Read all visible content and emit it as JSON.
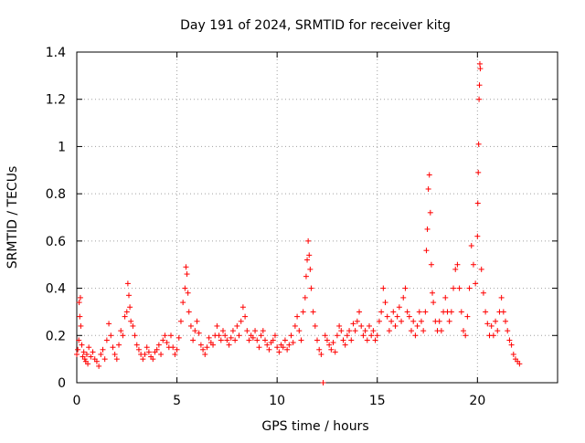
{
  "chart_data": {
    "type": "scatter",
    "title": "Day 191 of 2024, SRMTID for receiver kitg",
    "xlabel": "GPS time / hours",
    "ylabel": "SRMTID / TECUs",
    "xlim": [
      0,
      24
    ],
    "ylim": [
      0,
      1.4
    ],
    "xticks": [
      0,
      5,
      10,
      15,
      20
    ],
    "yticks": [
      0,
      0.2,
      0.4,
      0.6,
      0.8,
      1,
      1.2,
      1.4
    ],
    "xtick_labels": [
      "0",
      "5",
      "10",
      "15",
      "20"
    ],
    "ytick_labels": [
      "0",
      "0.2",
      "0.4",
      "0.6",
      "0.8",
      "1",
      "1.2",
      "1.4"
    ],
    "grid": true,
    "marker": "plus",
    "color": "#ff0000",
    "series": [
      {
        "name": "SRMTID",
        "points": [
          [
            0.0,
            0.12
          ],
          [
            0.05,
            0.14
          ],
          [
            0.1,
            0.18
          ],
          [
            0.12,
            0.34
          ],
          [
            0.15,
            0.28
          ],
          [
            0.18,
            0.36
          ],
          [
            0.2,
            0.24
          ],
          [
            0.25,
            0.16
          ],
          [
            0.3,
            0.11
          ],
          [
            0.35,
            0.13
          ],
          [
            0.4,
            0.1
          ],
          [
            0.45,
            0.09
          ],
          [
            0.5,
            0.12
          ],
          [
            0.55,
            0.08
          ],
          [
            0.6,
            0.15
          ],
          [
            0.7,
            0.11
          ],
          [
            0.8,
            0.13
          ],
          [
            0.9,
            0.1
          ],
          [
            1.0,
            0.09
          ],
          [
            1.1,
            0.07
          ],
          [
            1.2,
            0.12
          ],
          [
            1.3,
            0.14
          ],
          [
            1.4,
            0.1
          ],
          [
            1.5,
            0.18
          ],
          [
            1.6,
            0.25
          ],
          [
            1.7,
            0.2
          ],
          [
            1.8,
            0.15
          ],
          [
            1.9,
            0.12
          ],
          [
            2.0,
            0.1
          ],
          [
            2.1,
            0.16
          ],
          [
            2.2,
            0.22
          ],
          [
            2.3,
            0.2
          ],
          [
            2.4,
            0.28
          ],
          [
            2.5,
            0.3
          ],
          [
            2.55,
            0.42
          ],
          [
            2.6,
            0.37
          ],
          [
            2.65,
            0.32
          ],
          [
            2.7,
            0.26
          ],
          [
            2.8,
            0.24
          ],
          [
            2.9,
            0.2
          ],
          [
            3.0,
            0.16
          ],
          [
            3.1,
            0.14
          ],
          [
            3.2,
            0.12
          ],
          [
            3.3,
            0.1
          ],
          [
            3.4,
            0.12
          ],
          [
            3.5,
            0.15
          ],
          [
            3.6,
            0.13
          ],
          [
            3.7,
            0.11
          ],
          [
            3.8,
            0.1
          ],
          [
            3.9,
            0.13
          ],
          [
            4.0,
            0.14
          ],
          [
            4.1,
            0.16
          ],
          [
            4.2,
            0.12
          ],
          [
            4.3,
            0.18
          ],
          [
            4.4,
            0.2
          ],
          [
            4.5,
            0.17
          ],
          [
            4.6,
            0.15
          ],
          [
            4.7,
            0.2
          ],
          [
            4.8,
            0.15
          ],
          [
            4.9,
            0.12
          ],
          [
            5.0,
            0.14
          ],
          [
            5.1,
            0.19
          ],
          [
            5.2,
            0.26
          ],
          [
            5.3,
            0.34
          ],
          [
            5.4,
            0.4
          ],
          [
            5.45,
            0.49
          ],
          [
            5.5,
            0.46
          ],
          [
            5.55,
            0.38
          ],
          [
            5.6,
            0.3
          ],
          [
            5.7,
            0.24
          ],
          [
            5.8,
            0.18
          ],
          [
            5.9,
            0.22
          ],
          [
            6.0,
            0.26
          ],
          [
            6.1,
            0.21
          ],
          [
            6.2,
            0.16
          ],
          [
            6.3,
            0.14
          ],
          [
            6.4,
            0.12
          ],
          [
            6.5,
            0.15
          ],
          [
            6.6,
            0.19
          ],
          [
            6.7,
            0.17
          ],
          [
            6.8,
            0.16
          ],
          [
            6.9,
            0.2
          ],
          [
            7.0,
            0.24
          ],
          [
            7.1,
            0.2
          ],
          [
            7.2,
            0.18
          ],
          [
            7.3,
            0.22
          ],
          [
            7.4,
            0.2
          ],
          [
            7.5,
            0.18
          ],
          [
            7.6,
            0.16
          ],
          [
            7.7,
            0.19
          ],
          [
            7.8,
            0.22
          ],
          [
            7.9,
            0.18
          ],
          [
            8.0,
            0.24
          ],
          [
            8.1,
            0.2
          ],
          [
            8.2,
            0.26
          ],
          [
            8.3,
            0.32
          ],
          [
            8.4,
            0.28
          ],
          [
            8.5,
            0.22
          ],
          [
            8.6,
            0.18
          ],
          [
            8.7,
            0.2
          ],
          [
            8.8,
            0.19
          ],
          [
            8.9,
            0.22
          ],
          [
            9.0,
            0.18
          ],
          [
            9.1,
            0.15
          ],
          [
            9.2,
            0.2
          ],
          [
            9.3,
            0.22
          ],
          [
            9.4,
            0.18
          ],
          [
            9.5,
            0.16
          ],
          [
            9.6,
            0.14
          ],
          [
            9.7,
            0.17
          ],
          [
            9.8,
            0.18
          ],
          [
            9.9,
            0.2
          ],
          [
            10.0,
            0.15
          ],
          [
            10.1,
            0.13
          ],
          [
            10.2,
            0.16
          ],
          [
            10.3,
            0.15
          ],
          [
            10.4,
            0.18
          ],
          [
            10.5,
            0.14
          ],
          [
            10.6,
            0.16
          ],
          [
            10.7,
            0.2
          ],
          [
            10.8,
            0.17
          ],
          [
            10.9,
            0.24
          ],
          [
            11.0,
            0.28
          ],
          [
            11.1,
            0.22
          ],
          [
            11.2,
            0.18
          ],
          [
            11.3,
            0.3
          ],
          [
            11.4,
            0.36
          ],
          [
            11.45,
            0.45
          ],
          [
            11.5,
            0.52
          ],
          [
            11.55,
            0.6
          ],
          [
            11.6,
            0.54
          ],
          [
            11.65,
            0.48
          ],
          [
            11.7,
            0.4
          ],
          [
            11.8,
            0.3
          ],
          [
            11.9,
            0.24
          ],
          [
            12.0,
            0.18
          ],
          [
            12.1,
            0.14
          ],
          [
            12.2,
            0.12
          ],
          [
            12.3,
            0.0
          ],
          [
            12.4,
            0.2
          ],
          [
            12.5,
            0.18
          ],
          [
            12.6,
            0.16
          ],
          [
            12.7,
            0.14
          ],
          [
            12.8,
            0.17
          ],
          [
            12.9,
            0.13
          ],
          [
            13.0,
            0.2
          ],
          [
            13.1,
            0.24
          ],
          [
            13.2,
            0.22
          ],
          [
            13.3,
            0.18
          ],
          [
            13.4,
            0.16
          ],
          [
            13.5,
            0.2
          ],
          [
            13.6,
            0.22
          ],
          [
            13.7,
            0.18
          ],
          [
            13.8,
            0.25
          ],
          [
            13.9,
            0.22
          ],
          [
            14.0,
            0.26
          ],
          [
            14.1,
            0.3
          ],
          [
            14.2,
            0.24
          ],
          [
            14.3,
            0.2
          ],
          [
            14.4,
            0.22
          ],
          [
            14.5,
            0.18
          ],
          [
            14.6,
            0.24
          ],
          [
            14.7,
            0.2
          ],
          [
            14.8,
            0.22
          ],
          [
            14.9,
            0.18
          ],
          [
            15.0,
            0.2
          ],
          [
            15.1,
            0.26
          ],
          [
            15.2,
            0.3
          ],
          [
            15.3,
            0.4
          ],
          [
            15.4,
            0.34
          ],
          [
            15.5,
            0.28
          ],
          [
            15.6,
            0.22
          ],
          [
            15.7,
            0.26
          ],
          [
            15.8,
            0.3
          ],
          [
            15.9,
            0.24
          ],
          [
            16.0,
            0.28
          ],
          [
            16.1,
            0.32
          ],
          [
            16.2,
            0.26
          ],
          [
            16.3,
            0.36
          ],
          [
            16.4,
            0.4
          ],
          [
            16.5,
            0.3
          ],
          [
            16.6,
            0.28
          ],
          [
            16.7,
            0.22
          ],
          [
            16.8,
            0.26
          ],
          [
            16.9,
            0.2
          ],
          [
            17.0,
            0.24
          ],
          [
            17.1,
            0.3
          ],
          [
            17.2,
            0.26
          ],
          [
            17.3,
            0.22
          ],
          [
            17.4,
            0.3
          ],
          [
            17.45,
            0.56
          ],
          [
            17.5,
            0.65
          ],
          [
            17.55,
            0.82
          ],
          [
            17.6,
            0.88
          ],
          [
            17.65,
            0.72
          ],
          [
            17.7,
            0.5
          ],
          [
            17.75,
            0.38
          ],
          [
            17.8,
            0.34
          ],
          [
            17.9,
            0.26
          ],
          [
            18.0,
            0.22
          ],
          [
            18.1,
            0.26
          ],
          [
            18.2,
            0.22
          ],
          [
            18.3,
            0.3
          ],
          [
            18.4,
            0.36
          ],
          [
            18.5,
            0.3
          ],
          [
            18.6,
            0.26
          ],
          [
            18.7,
            0.3
          ],
          [
            18.8,
            0.4
          ],
          [
            18.9,
            0.48
          ],
          [
            19.0,
            0.5
          ],
          [
            19.1,
            0.4
          ],
          [
            19.2,
            0.3
          ],
          [
            19.3,
            0.22
          ],
          [
            19.4,
            0.2
          ],
          [
            19.5,
            0.28
          ],
          [
            19.6,
            0.4
          ],
          [
            19.7,
            0.58
          ],
          [
            19.8,
            0.5
          ],
          [
            19.9,
            0.42
          ],
          [
            20.0,
            0.62
          ],
          [
            20.02,
            0.76
          ],
          [
            20.04,
            0.89
          ],
          [
            20.06,
            1.01
          ],
          [
            20.08,
            1.2
          ],
          [
            20.1,
            1.26
          ],
          [
            20.12,
            1.35
          ],
          [
            20.14,
            1.33
          ],
          [
            20.2,
            0.48
          ],
          [
            20.3,
            0.38
          ],
          [
            20.4,
            0.3
          ],
          [
            20.5,
            0.25
          ],
          [
            20.6,
            0.2
          ],
          [
            20.7,
            0.24
          ],
          [
            20.8,
            0.2
          ],
          [
            20.9,
            0.26
          ],
          [
            21.0,
            0.22
          ],
          [
            21.1,
            0.3
          ],
          [
            21.2,
            0.36
          ],
          [
            21.3,
            0.3
          ],
          [
            21.4,
            0.26
          ],
          [
            21.5,
            0.22
          ],
          [
            21.6,
            0.18
          ],
          [
            21.7,
            0.16
          ],
          [
            21.8,
            0.12
          ],
          [
            21.9,
            0.1
          ],
          [
            22.0,
            0.09
          ],
          [
            22.1,
            0.08
          ]
        ]
      }
    ]
  }
}
